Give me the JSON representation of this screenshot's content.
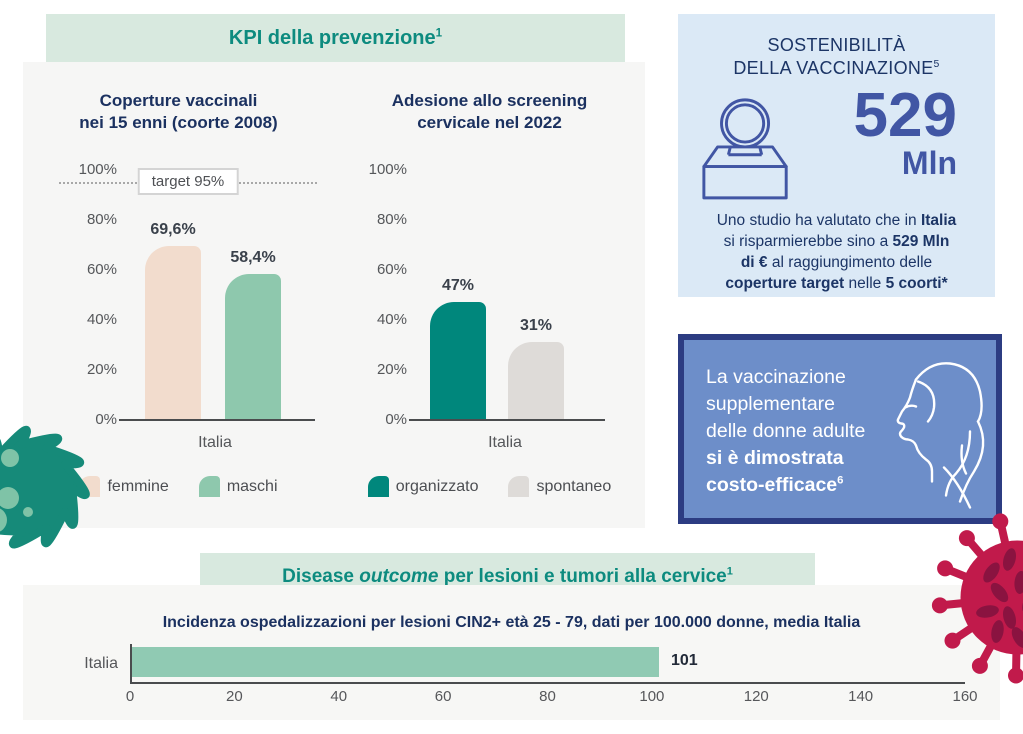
{
  "kpi": {
    "banner": [
      {
        "t": "KPI della prevenzione",
        "b": true
      },
      {
        "t": "1",
        "b": true,
        "sup": true
      }
    ]
  },
  "sustainability": {
    "title_lines": [
      [
        {
          "t": "SOSTENIBILITÀ"
        }
      ],
      [
        {
          "t": "DELLA VACCINAZIONE"
        },
        {
          "t": "5",
          "sup": true
        }
      ]
    ],
    "big_number": "529",
    "big_unit": "Mln",
    "paragraph_lines": [
      [
        {
          "t": "Uno studio ha valutato che in "
        },
        {
          "t": "Italia",
          "b": true
        }
      ],
      [
        {
          "t": "si risparmierebbe sino a "
        },
        {
          "t": "529 Mln",
          "b": true
        }
      ],
      [
        {
          "t": "di €",
          "b": true
        },
        {
          "t": " al raggiungimento delle"
        }
      ],
      [
        {
          "t": "coperture target",
          "b": true
        },
        {
          "t": " nelle "
        },
        {
          "t": "5 coorti*",
          "b": true
        }
      ]
    ]
  },
  "callout": {
    "lines": [
      [
        {
          "t": "La vaccinazione"
        }
      ],
      [
        {
          "t": "supplementare"
        }
      ],
      [
        {
          "t": "delle donne adulte"
        }
      ],
      [
        {
          "t": "si è dimostrata",
          "b": true
        }
      ],
      [
        {
          "t": "costo-efficace",
          "b": true
        },
        {
          "t": "6",
          "b": true,
          "sup": true
        }
      ]
    ]
  },
  "outcome": {
    "banner": [
      {
        "t": "Disease ",
        "b": true
      },
      {
        "t": "outcome",
        "b": true,
        "i": true
      },
      {
        "t": " per lesioni e tumori alla cervice",
        "b": true
      },
      {
        "t": "1",
        "b": true,
        "sup": true
      }
    ]
  },
  "colors": {
    "teal_heading": "#0d8b7f",
    "banner_bg": "#d8e9df",
    "panel_bg": "#f6f6f5",
    "navy": "#1c3566",
    "accent_blue": "#4156a4",
    "lightblue_bg": "#dbe9f6",
    "callout_bg": "#6d8ec9",
    "callout_border": "#2c3c82",
    "virus_teal": "#168a79",
    "virus_teal_dots": "#7fc3a7",
    "virus_crimson": "#c11a4b",
    "virus_crimson_spots": "#8a1340"
  },
  "chart_data": [
    {
      "type": "bar",
      "title_lines": [
        "Coperture vaccinali",
        "nei 15 enni (coorte 2008)"
      ],
      "categories": [
        "Italia"
      ],
      "series": [
        {
          "name": "femmine",
          "value": 69.6,
          "label": "69,6%",
          "color": "#f2dccd"
        },
        {
          "name": "maschi",
          "value": 58.4,
          "label": "58,4%",
          "color": "#8ec8ad"
        }
      ],
      "target": {
        "value": 95,
        "label": "target 95%"
      },
      "ylim": [
        0,
        100
      ],
      "yticks": [
        "100%",
        "80%",
        "60%",
        "40%",
        "20%",
        "0%"
      ],
      "legend_position": "bottom",
      "grid": false
    },
    {
      "type": "bar",
      "title_lines": [
        "Adesione allo screening",
        "cervicale nel 2022"
      ],
      "categories": [
        "Italia"
      ],
      "series": [
        {
          "name": "organizzato",
          "value": 47,
          "label": "47%",
          "color": "#00877c"
        },
        {
          "name": "spontaneo",
          "value": 31,
          "label": "31%",
          "color": "#dedbd8"
        }
      ],
      "ylim": [
        0,
        100
      ],
      "yticks": [
        "100%",
        "80%",
        "60%",
        "40%",
        "20%",
        "0%"
      ],
      "legend_position": "bottom",
      "grid": false
    },
    {
      "type": "bar",
      "orientation": "horizontal",
      "title": "Incidenza ospedalizzazioni per lesioni CIN2+ età 25 - 79, dati per 100.000 donne, media Italia",
      "categories": [
        "Italia"
      ],
      "values": [
        101
      ],
      "bar_label": "101",
      "color": "#90cab3",
      "xlim": [
        0,
        160
      ],
      "xticks": [
        0,
        20,
        40,
        60,
        80,
        100,
        120,
        140,
        160
      ],
      "grid": false
    }
  ]
}
